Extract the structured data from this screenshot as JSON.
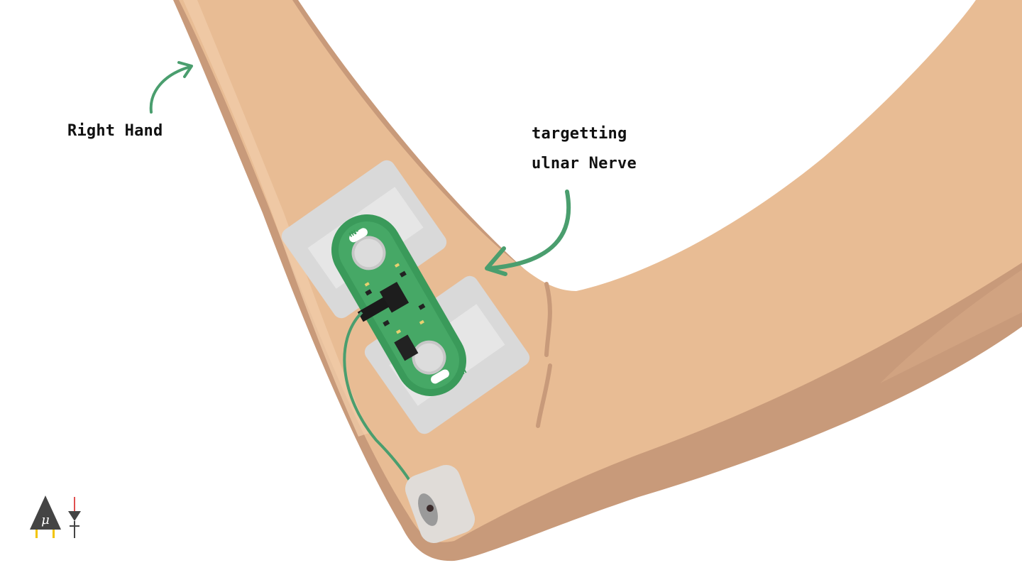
{
  "annotations": {
    "hand_label": "Right Hand",
    "target_line1": "targetting",
    "target_line2": "ulnar Nerve"
  },
  "sensor": {
    "pad_top_label": "IN-",
    "pad_bottom_label": "IN+"
  },
  "colors": {
    "skin": "#e8bc94",
    "skin_shadow": "#c89a7a",
    "pcb": "#3a9a5a",
    "arrow": "#4a9e6e",
    "tape": "#d9d9d9"
  },
  "icons": [
    "muscle-sensor-logo-icon",
    "arrow-to-hand-icon",
    "arrow-to-nerve-icon",
    "electrode-icon"
  ]
}
